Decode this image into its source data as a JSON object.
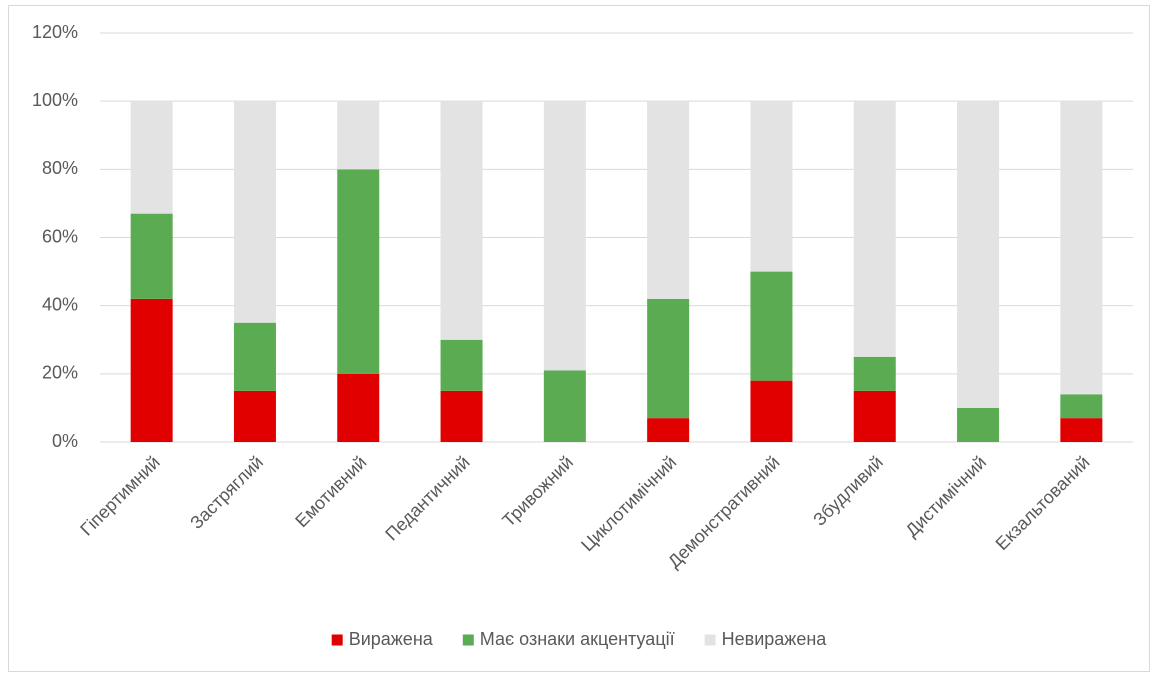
{
  "chart_data": {
    "type": "stacked_bar",
    "categories": [
      "Гіпертимний",
      "Застряглий",
      "Емотивний",
      "Педантичний",
      "Тривожний",
      "Циклотимічний",
      "Демонстративний",
      "Збудливий",
      "Дистимічний",
      "Екзальтований"
    ],
    "series": [
      {
        "name": "Виражена",
        "color": "#e00000",
        "values": [
          42,
          15,
          20,
          15,
          0,
          7,
          18,
          15,
          0,
          7
        ]
      },
      {
        "name": "Має ознаки акцентуації",
        "color": "#5aab52",
        "values": [
          25,
          20,
          60,
          15,
          21,
          35,
          32,
          10,
          10,
          7
        ]
      },
      {
        "name": "Невиражена",
        "color": "#e3e3e3",
        "values": [
          33,
          65,
          20,
          70,
          79,
          58,
          50,
          75,
          90,
          86
        ]
      }
    ],
    "ylim": [
      0,
      120
    ],
    "yticks": [
      {
        "value": 0,
        "label": "0%"
      },
      {
        "value": 20,
        "label": "20%"
      },
      {
        "value": 40,
        "label": "40%"
      },
      {
        "value": 60,
        "label": "60%"
      },
      {
        "value": 80,
        "label": "80%"
      },
      {
        "value": 100,
        "label": "100%"
      },
      {
        "value": 120,
        "label": "120%"
      }
    ],
    "grid": true,
    "legend": "bottom"
  }
}
